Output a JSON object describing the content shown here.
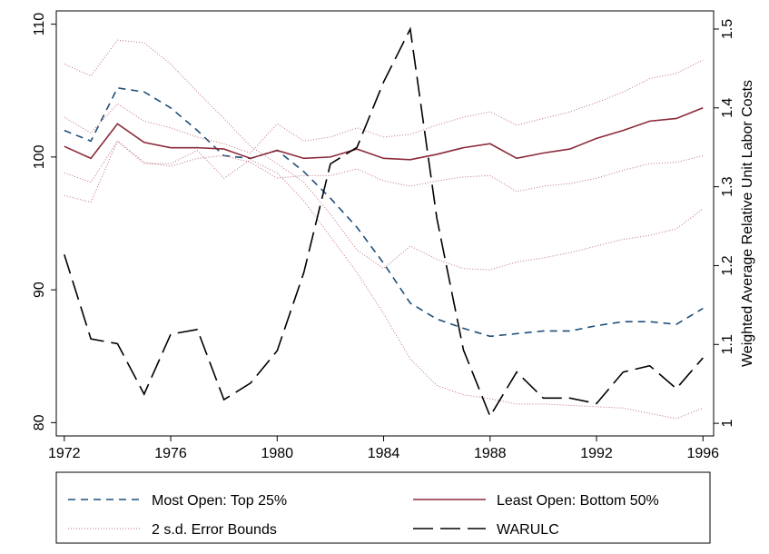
{
  "chart_data": {
    "type": "line",
    "x": [
      1972,
      1973,
      1974,
      1975,
      1976,
      1977,
      1978,
      1979,
      1980,
      1981,
      1982,
      1983,
      1984,
      1985,
      1986,
      1987,
      1988,
      1989,
      1990,
      1991,
      1992,
      1993,
      1994,
      1995,
      1996
    ],
    "xlim": [
      1971.7,
      1996.4
    ],
    "xticks": [
      1972,
      1976,
      1980,
      1984,
      1988,
      1992,
      1996
    ],
    "ylim": [
      79,
      111
    ],
    "yticks": [
      80,
      90,
      100,
      110
    ],
    "y2lim": [
      0.984,
      1.523
    ],
    "y2ticks": [
      1,
      1.1,
      1.2,
      1.3,
      1.4,
      1.5
    ],
    "y2label": "Weighted Average Relative Unit Labor Costs",
    "grid": false,
    "legend": "bottom",
    "series": [
      {
        "name": "Most Open: Top 25%",
        "color": "#1f4e79",
        "dash": "8,6",
        "values": [
          102.0,
          101.2,
          105.2,
          104.9,
          103.7,
          102.0,
          100.1,
          99.9,
          100.5,
          98.9,
          96.9,
          94.7,
          92.0,
          89.0,
          87.8,
          87.1,
          86.5,
          86.7,
          86.9,
          86.9,
          87.3,
          87.6,
          87.6,
          87.4,
          88.6
        ]
      },
      {
        "name": "Least Open: Bottom 50%",
        "color": "#8b2a3a",
        "dash": "none",
        "values": [
          100.8,
          99.9,
          102.5,
          101.1,
          100.7,
          100.7,
          100.6,
          99.9,
          100.5,
          99.9,
          100.0,
          100.6,
          99.9,
          99.8,
          100.2,
          100.7,
          101.0,
          99.9,
          100.3,
          100.6,
          101.4,
          102.0,
          102.7,
          102.9,
          103.7
        ]
      },
      {
        "name": "2 s.d. Error Bounds",
        "color": "#c0707a",
        "dash": "1,2",
        "bounds": [
          [
            107.0,
            106.1,
            108.8,
            108.6,
            107.0,
            104.9,
            102.9,
            100.8,
            99.5,
            98.1,
            95.7,
            93.0,
            91.6,
            93.3,
            92.3,
            91.6,
            91.5,
            92.1,
            92.4,
            92.8,
            93.3,
            93.8,
            94.1,
            94.6,
            96.1
          ],
          [
            97.1,
            96.6,
            101.2,
            99.5,
            99.5,
            100.5,
            98.4,
            99.8,
            98.8,
            96.7,
            94.0,
            91.3,
            88.2,
            84.8,
            82.8,
            82.1,
            81.8,
            81.4,
            81.4,
            81.3,
            81.2,
            81.1,
            80.7,
            80.3,
            81.1
          ],
          [
            103.0,
            101.8,
            104.0,
            102.7,
            102.2,
            101.5,
            101.0,
            100.3,
            102.5,
            101.2,
            101.5,
            102.2,
            101.5,
            101.7,
            102.4,
            103.0,
            103.4,
            102.4,
            102.9,
            103.4,
            104.1,
            104.9,
            105.9,
            106.3,
            107.3
          ],
          [
            98.8,
            98.1,
            101.2,
            99.6,
            99.3,
            99.9,
            100.1,
            99.6,
            98.4,
            98.6,
            98.6,
            99.1,
            98.2,
            97.8,
            98.2,
            98.5,
            98.6,
            97.4,
            97.8,
            98.0,
            98.4,
            99.0,
            99.5,
            99.6,
            100.1
          ]
        ]
      },
      {
        "name": "WARULC",
        "color": "#000000",
        "dash": "22,8",
        "axis": "y2",
        "values": [
          1.214,
          1.107,
          1.101,
          1.037,
          1.113,
          1.119,
          1.03,
          1.051,
          1.092,
          1.191,
          1.329,
          1.35,
          1.433,
          1.5,
          1.26,
          1.093,
          1.009,
          1.065,
          1.032,
          1.032,
          1.025,
          1.065,
          1.073,
          1.044,
          1.083
        ]
      }
    ]
  }
}
